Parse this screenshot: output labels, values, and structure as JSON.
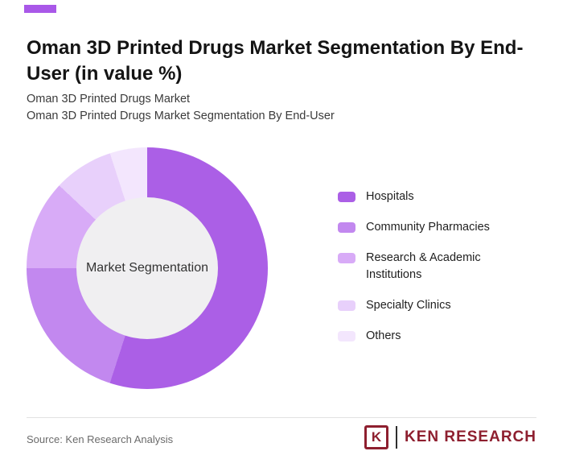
{
  "page": {
    "title": "Oman 3D Printed Drugs Market Segmentation By End-User (in value %)",
    "subtitle_line1": "Oman 3D Printed Drugs Market",
    "subtitle_line2": "Oman 3D Printed Drugs Market Segmentation By End-User"
  },
  "chart_data": {
    "type": "pie",
    "variant": "donut",
    "title": "Oman 3D Printed Drugs Market Segmentation By End-User (in value %)",
    "center_label": "Market Segmentation",
    "categories": [
      "Hospitals",
      "Community Pharmacies",
      "Research & Academic Institutions",
      "Specialty Clinics",
      "Others"
    ],
    "values": [
      55,
      20,
      12,
      8,
      5
    ],
    "colors": [
      "#ab5fe6",
      "#c288ef",
      "#d8abf7",
      "#e8d0fb",
      "#f3e6fd"
    ],
    "legend_position": "right",
    "value_labels_shown": false,
    "start_angle_deg": 0,
    "direction": "clockwise"
  },
  "footer": {
    "source": "Source: Ken Research Analysis",
    "logo_mark": "K",
    "logo_text": "KEN RESEARCH"
  },
  "theme": {
    "accent": "#a958e8",
    "logo_color": "#8e1f2f",
    "center_circle": "#f0eff1"
  }
}
